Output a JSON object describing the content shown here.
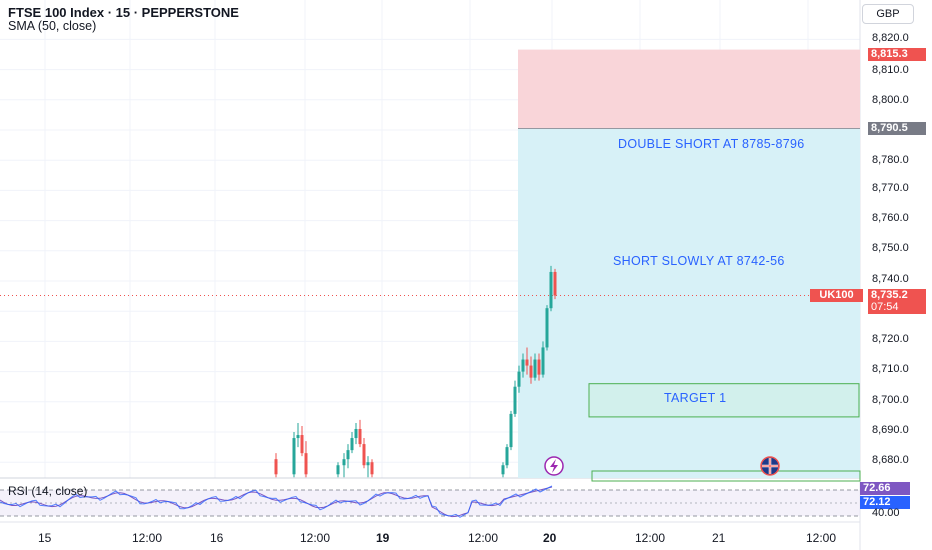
{
  "header": {
    "title": "FTSE 100 Index · 15 · PEPPERSTONE",
    "indicator": "SMA (50, close)",
    "currency": "GBP"
  },
  "rsi": {
    "label": "RSI (14, close)",
    "value1": "72.66",
    "value2": "72.12",
    "tick_low": "40.00"
  },
  "price_axis": {
    "ticks": [
      "8,820.0",
      "8,810.0",
      "8,800.0",
      "8,790.0",
      "8,780.0",
      "8,770.0",
      "8,760.0",
      "8,750.0",
      "8,740.0",
      "8,720.0",
      "8,710.0",
      "8,700.0",
      "8,690.0",
      "8,680.0"
    ],
    "stop_tag": "8,815.3",
    "entry_tag": "8,790.5",
    "last_price": "8,735.2",
    "countdown": "07:54",
    "symbol_tag": "UK100"
  },
  "time_axis": {
    "ticks": [
      "15",
      "12:00",
      "16",
      "12:00",
      "19",
      "12:00",
      "20",
      "12:00",
      "21",
      "12:00"
    ]
  },
  "annotations": {
    "double_short": "DOUBLE SHORT AT 8785-8796",
    "short_slowly": "SHORT SLOWLY AT 8742-56",
    "target1": "TARGET 1"
  },
  "colors": {
    "up": "#26a69a",
    "down": "#ef5350",
    "stop_zone": "#f9d5d9",
    "profit_zone": "#d7f1f7",
    "annotation_text": "#2962ff",
    "rsi_line": "#7e57c2",
    "sma_line": "#2962ff"
  },
  "chart_data": {
    "type": "candlestick",
    "symbol": "UK100",
    "y_axis_range": [
      8675,
      8823
    ],
    "rsi_range": [
      40,
      72.66
    ],
    "last_price": 8735.2,
    "position": {
      "entry": 8790.5,
      "stop": 8815.3
    },
    "zones": [
      {
        "label": "TARGET 1",
        "from": 8695,
        "to": 8706
      }
    ],
    "candles": [
      {
        "t": "19 08:00",
        "o": 8681,
        "h": 8683,
        "l": 8675,
        "c": 8676
      },
      {
        "t": "19 08:45",
        "o": 8676,
        "h": 8690,
        "l": 8675,
        "c": 8688
      },
      {
        "t": "19 09:00",
        "o": 8688,
        "h": 8693,
        "l": 8685,
        "c": 8689
      },
      {
        "t": "19 09:15",
        "o": 8689,
        "h": 8692,
        "l": 8682,
        "c": 8683
      },
      {
        "t": "19 09:30",
        "o": 8683,
        "h": 8687,
        "l": 8675,
        "c": 8676
      },
      {
        "t": "19 14:00",
        "o": 8676,
        "h": 8680,
        "l": 8675,
        "c": 8679
      },
      {
        "t": "19 14:15",
        "o": 8679,
        "h": 8683,
        "l": 8675,
        "c": 8681
      },
      {
        "t": "19 14:30",
        "o": 8681,
        "h": 8686,
        "l": 8678,
        "c": 8684
      },
      {
        "t": "19 14:45",
        "o": 8684,
        "h": 8690,
        "l": 8683,
        "c": 8688
      },
      {
        "t": "19 15:00",
        "o": 8688,
        "h": 8693,
        "l": 8686,
        "c": 8691
      },
      {
        "t": "19 15:15",
        "o": 8691,
        "h": 8694,
        "l": 8685,
        "c": 8686
      },
      {
        "t": "19 15:30",
        "o": 8686,
        "h": 8688,
        "l": 8678,
        "c": 8679
      },
      {
        "t": "19 15:45",
        "o": 8679,
        "h": 8682,
        "l": 8675,
        "c": 8680
      },
      {
        "t": "19 16:00",
        "o": 8680,
        "h": 8681,
        "l": 8675,
        "c": 8676
      },
      {
        "t": "20 07:15",
        "o": 8676,
        "h": 8680,
        "l": 8675,
        "c": 8679
      },
      {
        "t": "20 07:30",
        "o": 8679,
        "h": 8686,
        "l": 8678,
        "c": 8685
      },
      {
        "t": "20 07:45",
        "o": 8685,
        "h": 8697,
        "l": 8684,
        "c": 8696
      },
      {
        "t": "20 08:00",
        "o": 8696,
        "h": 8707,
        "l": 8695,
        "c": 8705
      },
      {
        "t": "20 08:15",
        "o": 8705,
        "h": 8712,
        "l": 8703,
        "c": 8710
      },
      {
        "t": "20 08:30",
        "o": 8710,
        "h": 8716,
        "l": 8708,
        "c": 8714
      },
      {
        "t": "20 08:45",
        "o": 8714,
        "h": 8718,
        "l": 8709,
        "c": 8712
      },
      {
        "t": "20 09:00",
        "o": 8712,
        "h": 8715,
        "l": 8706,
        "c": 8708
      },
      {
        "t": "20 09:15",
        "o": 8708,
        "h": 8716,
        "l": 8707,
        "c": 8714
      },
      {
        "t": "20 09:30",
        "o": 8714,
        "h": 8716,
        "l": 8707,
        "c": 8709
      },
      {
        "t": "20 09:45",
        "o": 8709,
        "h": 8720,
        "l": 8708,
        "c": 8718
      },
      {
        "t": "20 10:00",
        "o": 8718,
        "h": 8732,
        "l": 8717,
        "c": 8731
      },
      {
        "t": "20 10:15",
        "o": 8731,
        "h": 8745,
        "l": 8730,
        "c": 8743
      },
      {
        "t": "20 10:30",
        "o": 8743,
        "h": 8744,
        "l": 8734,
        "c": 8735.2
      }
    ]
  }
}
